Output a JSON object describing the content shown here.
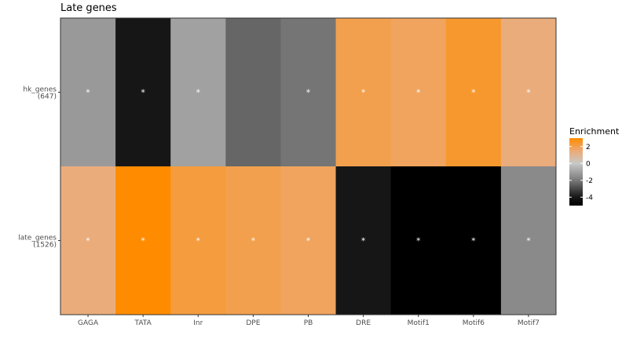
{
  "chart_data": {
    "type": "heatmap",
    "title": "Late genes",
    "xlabel": "",
    "ylabel": "",
    "x_categories": [
      "GAGA",
      "TATA",
      "Inr",
      "DPE",
      "PB",
      "DRE",
      "Motif1",
      "Motif6",
      "Motif7"
    ],
    "y_categories": [
      {
        "name": "hk_genes",
        "count": "(647)"
      },
      {
        "name": "late_genes",
        "count": "(1526)"
      }
    ],
    "values": [
      [
        -1.2,
        -4.0,
        -1.0,
        -2.4,
        -2.1,
        2.0,
        1.8,
        2.4,
        1.4
      ],
      [
        1.4,
        3.0,
        2.2,
        2.0,
        1.8,
        -4.0,
        -5.0,
        -5.0,
        -1.6
      ]
    ],
    "significant": [
      [
        true,
        true,
        true,
        false,
        true,
        true,
        true,
        true,
        true
      ],
      [
        true,
        true,
        true,
        true,
        true,
        true,
        true,
        true,
        true
      ]
    ],
    "significance_marker": "*",
    "legend": {
      "title": "Enrichment",
      "ticks": [
        2,
        0,
        -2,
        -4
      ],
      "placement": "right"
    },
    "color_scale": {
      "min": -5,
      "max": 3,
      "stops": [
        {
          "value": -5,
          "color": "#000000"
        },
        {
          "value": -4,
          "color": "#161616"
        },
        {
          "value": -2,
          "color": "#7a7a7a"
        },
        {
          "value": 0,
          "color": "#c8c8c8"
        },
        {
          "value": 1.5,
          "color": "#ecaa75"
        },
        {
          "value": 3,
          "color": "#ff8c00"
        }
      ]
    },
    "grid": false
  }
}
